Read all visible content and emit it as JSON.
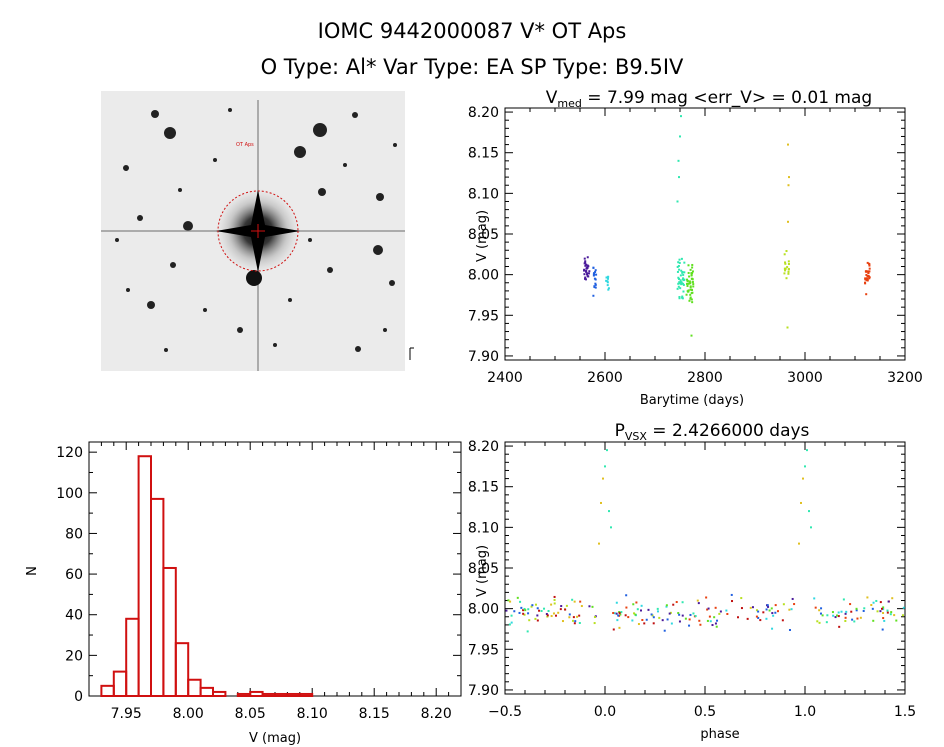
{
  "header": {
    "title": "IOMC 9442000087    V* OT Aps",
    "subtitle": "O Type: Al*   Var Type: EA   SP Type: B9.5IV"
  },
  "finder": {
    "corner_label": "OT Aps",
    "bottom_label": "",
    "side_label": ""
  },
  "chart_data": [
    {
      "type": "scatter",
      "panel": "light-curve",
      "title_main": "V",
      "title_sub": "med",
      "title_rest": " = 7.99 mag <err_V> = 0.01 mag",
      "xlabel": "Barytime (days)",
      "ylabel": "V (mag)",
      "xlim": [
        2400,
        3200
      ],
      "ylim": [
        8.205,
        7.895
      ],
      "xticks": [
        "2400",
        "2600",
        "2800",
        "3000",
        "3200"
      ],
      "yticks": [
        "7.90",
        "7.95",
        "8.00",
        "8.05",
        "8.10",
        "8.15",
        "8.20"
      ],
      "clusters": [
        {
          "x": 2563,
          "width": 12,
          "v_center": 8.005,
          "v_spread": 0.022,
          "n": 30,
          "color": "#4a1a9a"
        },
        {
          "x": 2580,
          "width": 8,
          "v_center": 7.995,
          "v_spread": 0.028,
          "n": 18,
          "color": "#2060e0"
        },
        {
          "x": 2605,
          "width": 6,
          "v_center": 7.99,
          "v_spread": 0.015,
          "n": 10,
          "color": "#30d8e0"
        },
        {
          "x": 2752,
          "width": 14,
          "v_center": 7.995,
          "v_spread": 0.035,
          "n": 40,
          "color": "#30e8b0"
        },
        {
          "x": 2770,
          "width": 14,
          "v_center": 7.99,
          "v_spread": 0.035,
          "n": 45,
          "color": "#60e020"
        },
        {
          "x": 2963,
          "width": 10,
          "v_center": 8.005,
          "v_spread": 0.03,
          "n": 18,
          "color": "#b8e020"
        },
        {
          "x": 3125,
          "width": 10,
          "v_center": 8.0,
          "v_spread": 0.03,
          "n": 30,
          "color": "#e84010"
        }
      ],
      "outliers": [
        {
          "x": 2745,
          "v": 8.09,
          "color": "#30e8b0"
        },
        {
          "x": 2748,
          "v": 8.12,
          "color": "#30e8b0"
        },
        {
          "x": 2750,
          "v": 8.17,
          "color": "#30e8b0"
        },
        {
          "x": 2752,
          "v": 8.195,
          "color": "#30e8b0"
        },
        {
          "x": 2747,
          "v": 8.14,
          "color": "#30e8b0"
        },
        {
          "x": 2773,
          "v": 7.925,
          "color": "#60e020"
        },
        {
          "x": 2965,
          "v": 7.935,
          "color": "#b8e020"
        },
        {
          "x": 2966,
          "v": 8.065,
          "color": "#e0c020"
        },
        {
          "x": 2967,
          "v": 8.11,
          "color": "#e0c020"
        },
        {
          "x": 2968,
          "v": 8.12,
          "color": "#e0c020"
        },
        {
          "x": 2966,
          "v": 8.16,
          "color": "#e0c020"
        }
      ]
    },
    {
      "type": "bar",
      "panel": "histogram",
      "xlabel": "V (mag)",
      "ylabel": "N",
      "xlim": [
        7.92,
        8.22
      ],
      "ylim": [
        0,
        125
      ],
      "xticks": [
        "7.95",
        "8.00",
        "8.05",
        "8.10",
        "8.15",
        "8.20"
      ],
      "yticks": [
        "0",
        "20",
        "40",
        "60",
        "80",
        "100",
        "120"
      ],
      "bin_width": 0.01,
      "bin_start": 7.93,
      "values": [
        5,
        12,
        38,
        118,
        97,
        63,
        26,
        8,
        4,
        2,
        0,
        1,
        2,
        1,
        1,
        1,
        1
      ]
    },
    {
      "type": "scatter",
      "panel": "phased",
      "title_main": "P",
      "title_sub": "VSX",
      "title_rest": " = 2.4266000 days",
      "xlabel": "phase",
      "ylabel": "V (mag)",
      "xlim": [
        -0.5,
        1.5
      ],
      "ylim": [
        8.205,
        7.895
      ],
      "xticks": [
        "−0.5",
        "0.0",
        "0.5",
        "1.0",
        "1.5"
      ],
      "yticks": [
        "7.90",
        "7.95",
        "8.00",
        "8.05",
        "8.10",
        "8.15",
        "8.20"
      ],
      "eclipse_points": [
        {
          "phase": -0.03,
          "v": 8.08,
          "color": "#e0c020"
        },
        {
          "phase": -0.02,
          "v": 8.13,
          "color": "#e0c020"
        },
        {
          "phase": -0.01,
          "v": 8.16,
          "color": "#e0c020"
        },
        {
          "phase": 0.0,
          "v": 8.175,
          "color": "#30e8b0"
        },
        {
          "phase": 0.01,
          "v": 8.195,
          "color": "#30e8b0"
        },
        {
          "phase": 0.02,
          "v": 8.12,
          "color": "#30e8b0"
        },
        {
          "phase": 0.03,
          "v": 8.1,
          "color": "#30e8b0"
        },
        {
          "phase": 0.97,
          "v": 8.08,
          "color": "#e0c020"
        },
        {
          "phase": 0.98,
          "v": 8.13,
          "color": "#e0c020"
        },
        {
          "phase": 0.99,
          "v": 8.16,
          "color": "#e0c020"
        },
        {
          "phase": 1.0,
          "v": 8.175,
          "color": "#30e8b0"
        },
        {
          "phase": 1.01,
          "v": 8.195,
          "color": "#30e8b0"
        },
        {
          "phase": 1.02,
          "v": 8.12,
          "color": "#30e8b0"
        },
        {
          "phase": 1.03,
          "v": 8.1,
          "color": "#30e8b0"
        }
      ],
      "palette": [
        "#4a1a9a",
        "#2060e0",
        "#30d8e0",
        "#30e8b0",
        "#60e020",
        "#b8e020",
        "#e0c020",
        "#e84010",
        "#c01010"
      ]
    }
  ]
}
